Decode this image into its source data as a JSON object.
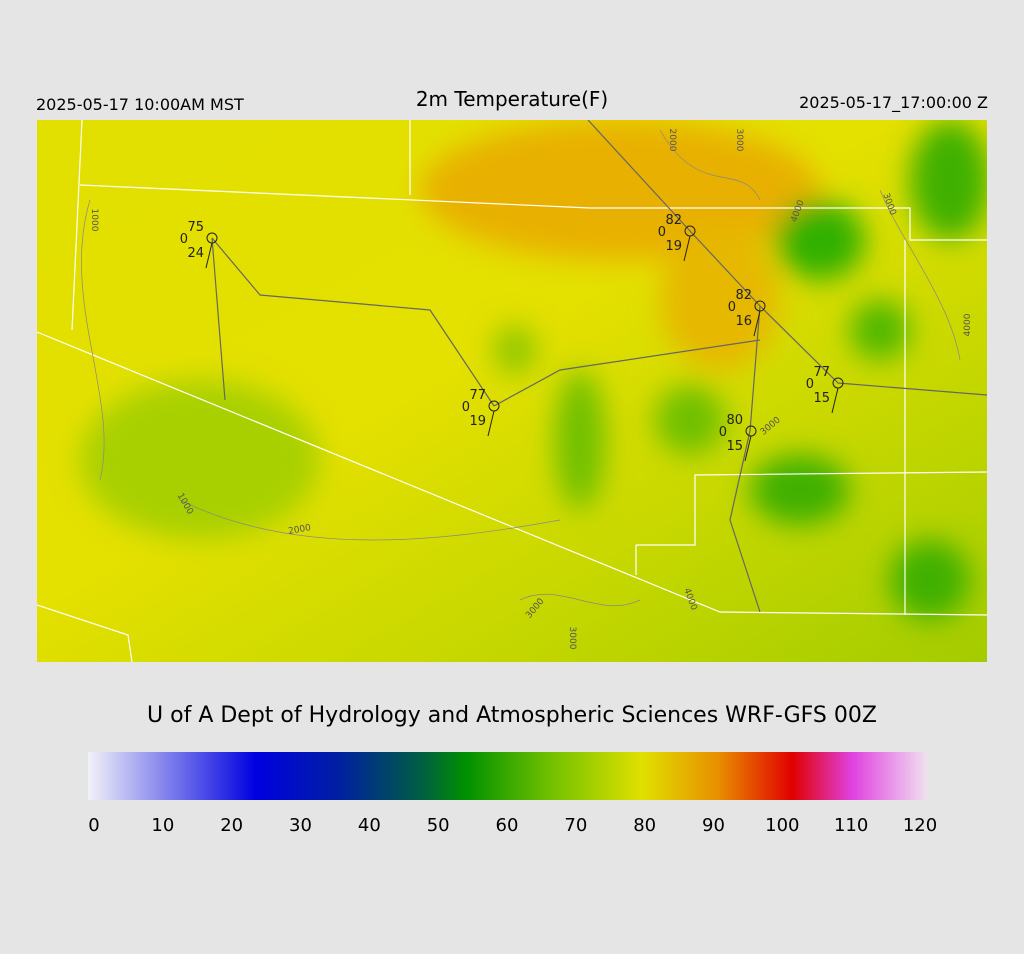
{
  "header": {
    "left": "2025-05-17 10:00AM MST",
    "title": "2m Temperature(F)",
    "right": "2025-05-17_17:00:00 Z"
  },
  "stations": [
    {
      "temp": 75,
      "pressure": 0,
      "dew": 24
    },
    {
      "temp": 82,
      "pressure": 0,
      "dew": 19
    },
    {
      "temp": 82,
      "pressure": 0,
      "dew": 16
    },
    {
      "temp": 77,
      "pressure": 0,
      "dew": 15
    },
    {
      "temp": 77,
      "pressure": 0,
      "dew": 19
    },
    {
      "temp": 80,
      "pressure": 0,
      "dew": 15
    }
  ],
  "contour_labels": [
    "1000",
    "2000",
    "3000",
    "4000",
    "3000",
    "4000",
    "3000",
    "1000",
    "2000",
    "3000",
    "3000",
    "4000"
  ],
  "credit": "U of A Dept of Hydrology and Atmospheric Sciences WRF-GFS 00Z",
  "colorbar": {
    "ticks": [
      0,
      10,
      20,
      30,
      40,
      50,
      60,
      70,
      80,
      90,
      100,
      110,
      120
    ]
  }
}
